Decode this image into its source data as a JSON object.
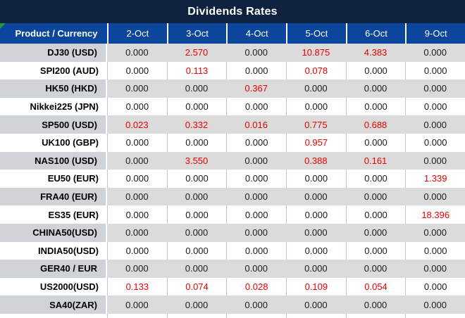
{
  "title": "Dividends Rates",
  "table": {
    "corner_header": "Product / Currency",
    "date_headers": [
      "2-Oct",
      "3-Oct",
      "4-Oct",
      "5-Oct",
      "6-Oct",
      "9-Oct"
    ],
    "rows": [
      {
        "product": "DJ30 (USD)",
        "values": [
          "0.000",
          "2.570",
          "0.000",
          "10.875",
          "4.383",
          "0.000"
        ],
        "red": [
          false,
          true,
          false,
          true,
          true,
          false
        ]
      },
      {
        "product": "SPI200 (AUD)",
        "values": [
          "0.000",
          "0.113",
          "0.000",
          "0.078",
          "0.000",
          "0.000"
        ],
        "red": [
          false,
          true,
          false,
          true,
          false,
          false
        ]
      },
      {
        "product": "HK50 (HKD)",
        "values": [
          "0.000",
          "0.000",
          "0.367",
          "0.000",
          "0.000",
          "0.000"
        ],
        "red": [
          false,
          false,
          true,
          false,
          false,
          false
        ]
      },
      {
        "product": "Nikkei225 (JPN)",
        "values": [
          "0.000",
          "0.000",
          "0.000",
          "0.000",
          "0.000",
          "0.000"
        ],
        "red": [
          false,
          false,
          false,
          false,
          false,
          false
        ]
      },
      {
        "product": "SP500 (USD)",
        "values": [
          "0.023",
          "0.332",
          "0.016",
          "0.775",
          "0.688",
          "0.000"
        ],
        "red": [
          true,
          true,
          true,
          true,
          true,
          false
        ]
      },
      {
        "product": "UK100 (GBP)",
        "values": [
          "0.000",
          "0.000",
          "0.000",
          "0.957",
          "0.000",
          "0.000"
        ],
        "red": [
          false,
          false,
          false,
          true,
          false,
          false
        ]
      },
      {
        "product": "NAS100 (USD)",
        "values": [
          "0.000",
          "3.550",
          "0.000",
          "0.388",
          "0.161",
          "0.000"
        ],
        "red": [
          false,
          true,
          false,
          true,
          true,
          false
        ]
      },
      {
        "product": "EU50 (EUR)",
        "values": [
          "0.000",
          "0.000",
          "0.000",
          "0.000",
          "0.000",
          "1.339"
        ],
        "red": [
          false,
          false,
          false,
          false,
          false,
          true
        ]
      },
      {
        "product": "FRA40 (EUR)",
        "values": [
          "0.000",
          "0.000",
          "0.000",
          "0.000",
          "0.000",
          "0.000"
        ],
        "red": [
          false,
          false,
          false,
          false,
          false,
          false
        ]
      },
      {
        "product": "ES35 (EUR)",
        "values": [
          "0.000",
          "0.000",
          "0.000",
          "0.000",
          "0.000",
          "18.396"
        ],
        "red": [
          false,
          false,
          false,
          false,
          false,
          true
        ]
      },
      {
        "product": "CHINA50(USD)",
        "values": [
          "0.000",
          "0.000",
          "0.000",
          "0.000",
          "0.000",
          "0.000"
        ],
        "red": [
          false,
          false,
          false,
          false,
          false,
          false
        ]
      },
      {
        "product": "INDIA50(USD)",
        "values": [
          "0.000",
          "0.000",
          "0.000",
          "0.000",
          "0.000",
          "0.000"
        ],
        "red": [
          false,
          false,
          false,
          false,
          false,
          false
        ]
      },
      {
        "product": "GER40 / EUR",
        "values": [
          "0.000",
          "0.000",
          "0.000",
          "0.000",
          "0.000",
          "0.000"
        ],
        "red": [
          false,
          false,
          false,
          false,
          false,
          false
        ]
      },
      {
        "product": "US2000(USD)",
        "values": [
          "0.133",
          "0.074",
          "0.028",
          "0.109",
          "0.054",
          "0.000"
        ],
        "red": [
          true,
          true,
          true,
          true,
          true,
          false
        ]
      },
      {
        "product": "SA40(ZAR)",
        "values": [
          "0.000",
          "0.000",
          "0.000",
          "0.000",
          "0.000",
          "0.000"
        ],
        "red": [
          false,
          false,
          false,
          false,
          false,
          false
        ]
      }
    ]
  },
  "colors": {
    "title_bar": "#0e2240",
    "header_bg": "#0b469c",
    "gray_row_value_bg": "#dbdbdb",
    "gray_row_product_bg": "#cfd3d8",
    "white_row_bg": "#ffffff",
    "negative_value_red": "#ea0000",
    "value_text": "#1a1a1a",
    "divider_blue_gray": "#bcc6d8",
    "green_corner_marker": "#1f9a3f"
  },
  "icons": {
    "green_corner_marker": "triangle-top-left"
  }
}
